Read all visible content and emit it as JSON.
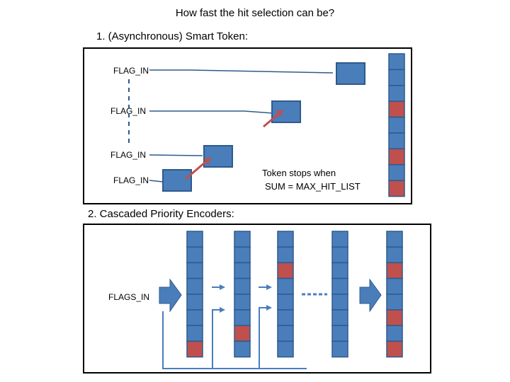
{
  "title": "How fast the hit selection can be?",
  "sections": {
    "smart_token": {
      "heading": "1. (Asynchronous) Smart Token:",
      "flag_labels": [
        "FLAG_IN",
        "FLAG_IN",
        "FLAG_IN",
        "FLAG_IN"
      ],
      "note_line1": "Token stops when",
      "note_line2": "SUM = MAX_HIT_LIST",
      "column_cells": [
        "empty",
        "empty",
        "empty",
        "hit",
        "empty",
        "empty",
        "hit",
        "empty",
        "hit"
      ]
    },
    "priority_encoders": {
      "heading": "2. Cascaded Priority Encoders:",
      "input_label": "FLAGS_IN",
      "columns": [
        [
          "empty",
          "empty",
          "empty",
          "empty",
          "empty",
          "empty",
          "empty",
          "hit"
        ],
        [
          "empty",
          "empty",
          "empty",
          "empty",
          "empty",
          "empty",
          "hit",
          "empty"
        ],
        [
          "empty",
          "empty",
          "hit",
          "empty",
          "empty",
          "empty",
          "empty",
          "empty"
        ],
        [
          "empty",
          "empty",
          "empty",
          "empty",
          "empty",
          "empty",
          "empty",
          "empty"
        ],
        [
          "empty",
          "empty",
          "hit",
          "empty",
          "empty",
          "hit",
          "empty",
          "hit"
        ]
      ]
    }
  },
  "colors": {
    "cell_empty": "#4a7ebb",
    "cell_hit": "#c0504d",
    "cell_border": "#2e5a8c",
    "line": "#4a7ebb",
    "token_arrow": "#c0504d"
  }
}
